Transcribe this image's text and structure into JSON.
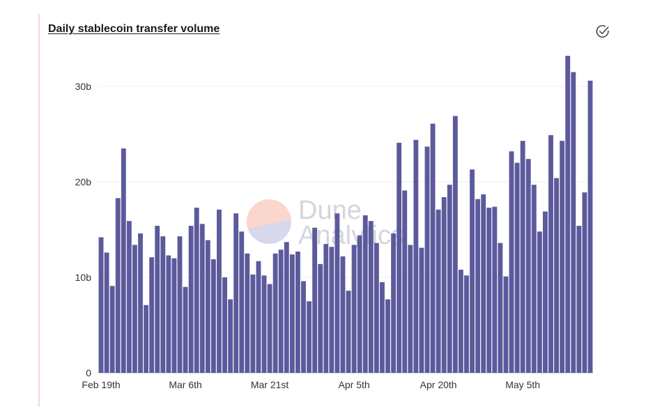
{
  "header": {
    "title": "Daily stablecoin transfer volume",
    "check_icon": "check-circle-icon"
  },
  "watermark": {
    "line1": "Dune",
    "line2": "Analytics",
    "colors": {
      "top": "#f8c9bd",
      "bottom": "#c9cbe6"
    }
  },
  "chart_data": {
    "type": "bar",
    "title": "Daily stablecoin transfer volume",
    "xlabel": "",
    "ylabel": "",
    "ylim": [
      0,
      30
    ],
    "y_unit": "b",
    "y_ticks": [
      {
        "value": 0,
        "label": "0"
      },
      {
        "value": 10,
        "label": "10b"
      },
      {
        "value": 20,
        "label": "20b"
      },
      {
        "value": 30,
        "label": "30b"
      }
    ],
    "x_ticks": [
      {
        "index": 0,
        "label": "Feb 19th"
      },
      {
        "index": 15,
        "label": "Mar 6th"
      },
      {
        "index": 30,
        "label": "Mar 21st"
      },
      {
        "index": 45,
        "label": "Apr 5th"
      },
      {
        "index": 60,
        "label": "Apr 20th"
      },
      {
        "index": 75,
        "label": "May 5th"
      }
    ],
    "bar_color": "#5c5a9c",
    "grid": true,
    "values": [
      14.2,
      12.6,
      9.1,
      18.3,
      23.5,
      15.9,
      13.4,
      14.6,
      7.1,
      12.1,
      15.4,
      14.3,
      12.3,
      12.0,
      14.3,
      9.0,
      15.4,
      17.3,
      15.6,
      13.9,
      11.9,
      17.1,
      10.0,
      7.7,
      16.7,
      14.8,
      12.5,
      10.3,
      11.7,
      10.2,
      9.3,
      12.5,
      12.9,
      13.7,
      12.4,
      12.7,
      9.6,
      7.5,
      15.2,
      11.4,
      13.5,
      13.2,
      16.7,
      12.2,
      8.6,
      13.4,
      14.4,
      16.5,
      15.9,
      13.6,
      9.5,
      7.7,
      14.6,
      24.1,
      19.1,
      13.4,
      24.4,
      13.1,
      23.7,
      26.1,
      17.1,
      18.4,
      19.7,
      26.9,
      10.8,
      10.2,
      21.3,
      18.2,
      18.7,
      17.3,
      17.4,
      13.6,
      10.1,
      23.2,
      22.0,
      24.3,
      22.4,
      19.7,
      14.8,
      16.9,
      24.9,
      20.4,
      24.3,
      33.2,
      31.5,
      15.4,
      18.9,
      30.6
    ]
  }
}
